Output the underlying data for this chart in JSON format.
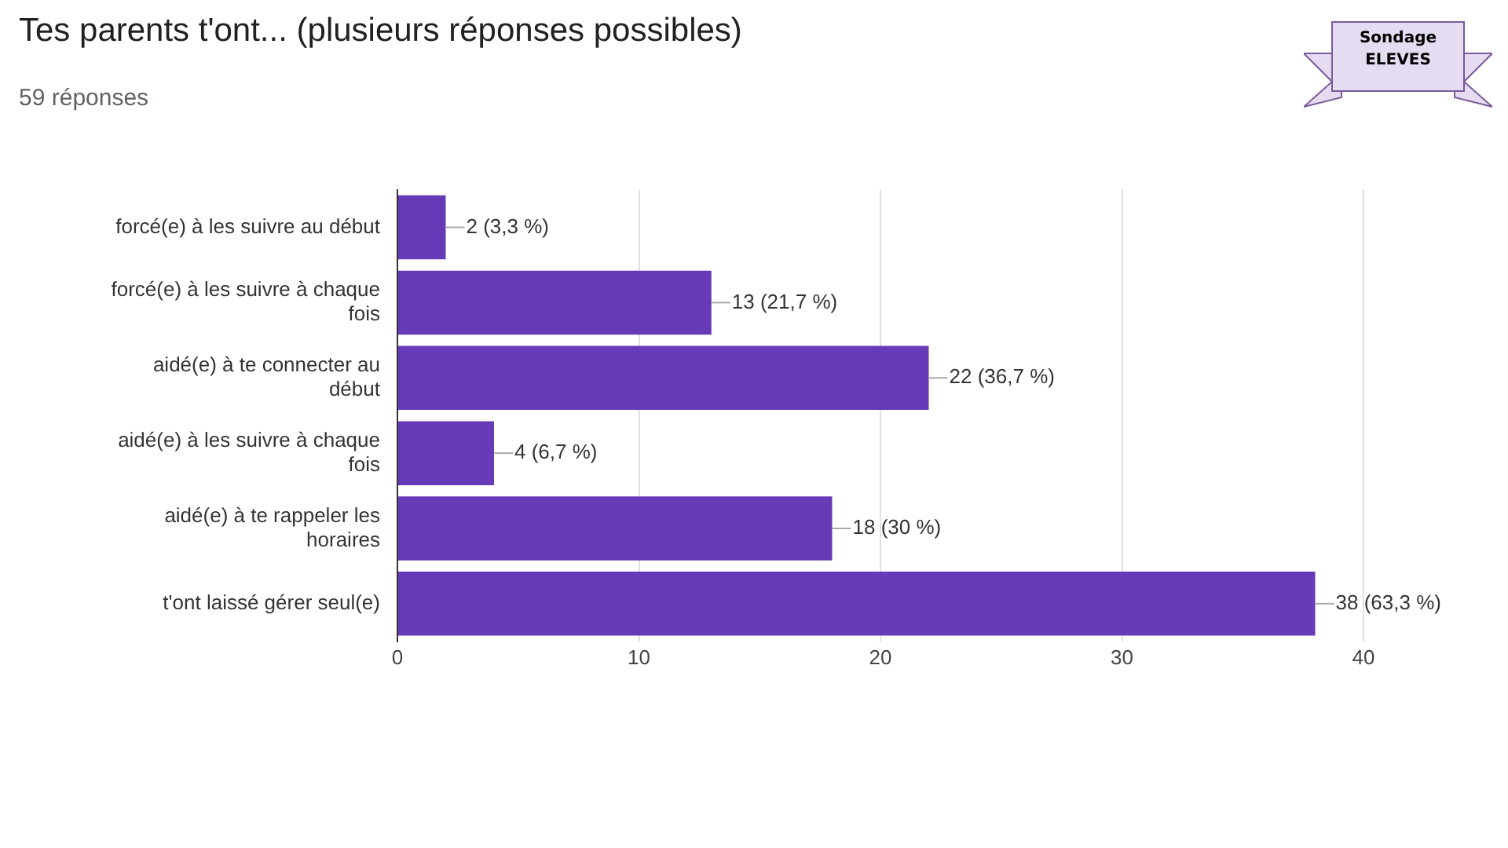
{
  "chart_data": {
    "type": "bar",
    "orientation": "horizontal",
    "title": "Tes parents t'ont... (plusieurs réponses possibles)",
    "subtitle": "59 réponses",
    "categories": [
      "forcé(e) à les suivre au début",
      "forcé(e) à les suivre à chaque fois",
      "aidé(e) à te connecter au début",
      "aidé(e) à les suivre à chaque fois",
      "aidé(e) à te rappeler les horaires",
      "t'ont laissé gérer seul(e)"
    ],
    "values": [
      2,
      13,
      22,
      4,
      18,
      38
    ],
    "color": "#673ab7",
    "value_labels": [
      "2 (3,3 %)",
      "13 (21,7 %)",
      "22 (36,7 %)",
      "4 (6,7 %)",
      "18 (30 %)",
      "38 (63,3 %)"
    ],
    "xlim": [
      0,
      40
    ],
    "xticks": [
      0,
      10,
      20,
      30,
      40
    ],
    "grid": "x",
    "legend": false,
    "annotations": [
      "Sondage ELEVES"
    ]
  }
}
